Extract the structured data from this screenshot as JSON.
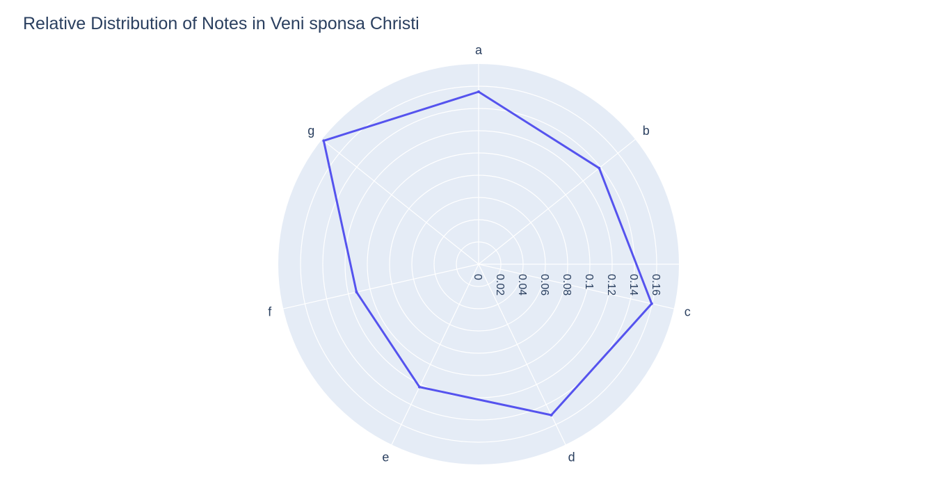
{
  "chart_data": {
    "type": "radar",
    "title": "Relative Distribution of Notes in Veni sponsa Christi",
    "categories": [
      "a",
      "b",
      "c",
      "d",
      "e",
      "f",
      "g"
    ],
    "series": [
      {
        "values": [
          0.155,
          0.1385,
          0.1595,
          0.1505,
          0.1225,
          0.1125,
          0.178
        ],
        "color": "#5553ee"
      }
    ],
    "radial_ticks": [
      "0",
      "0.02",
      "0.04",
      "0.06",
      "0.08",
      "0.1",
      "0.12",
      "0.14",
      "0.16"
    ],
    "radial_tick_values": [
      0,
      0.02,
      0.04,
      0.06,
      0.08,
      0.1,
      0.12,
      0.14,
      0.16
    ],
    "radial_range": [
      0,
      0.18
    ],
    "angular_direction": "clockwise",
    "angular_start": "top",
    "grid": true,
    "background_color": "#e5ecf6",
    "gridline_color": "#ffffff",
    "text_color": "#2a3f5f"
  }
}
